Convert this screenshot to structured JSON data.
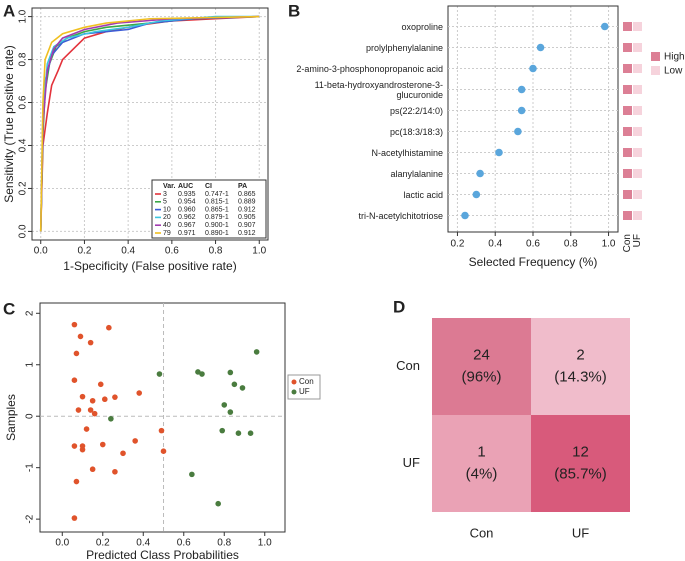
{
  "chart_data": [
    {
      "type": "line",
      "panel": "A",
      "x_label": "1-Specificity (False positive rate)",
      "y_label": "Sensitivity (True positive rate)",
      "xlim": [
        -0.04,
        1.04
      ],
      "ylim": [
        -0.04,
        1.04
      ],
      "xticks": [
        {
          "value": 0,
          "label": "0.0"
        },
        0.2,
        0.4,
        0.6,
        0.8,
        {
          "value": 1,
          "label": "1.0"
        }
      ],
      "yticks": [
        {
          "value": 0,
          "label": "0.0"
        },
        0.2,
        0.4,
        0.6,
        0.8,
        {
          "value": 1,
          "label": "1.0"
        }
      ],
      "grid": true,
      "legend_position": "lower right",
      "legend_columns": [
        "Var.",
        "AUC",
        "CI",
        "PA"
      ],
      "series": [
        {
          "name": "3",
          "color": "#e3323b",
          "auc": "0.935",
          "ci": "0.747-1",
          "pa": "0.865",
          "x": [
            0,
            0.01,
            0.03,
            0.05,
            0.08,
            0.1,
            0.15,
            0.2,
            0.3,
            0.45,
            0.6,
            0.8,
            1
          ],
          "values": [
            0,
            0.4,
            0.55,
            0.68,
            0.75,
            0.8,
            0.85,
            0.9,
            0.93,
            0.96,
            0.98,
            0.99,
            1
          ]
        },
        {
          "name": "5",
          "color": "#3aa845",
          "auc": "0.954",
          "ci": "0.815-1",
          "pa": "0.889",
          "x": [
            0,
            0.01,
            0.02,
            0.04,
            0.07,
            0.12,
            0.2,
            0.3,
            0.5,
            0.7,
            1
          ],
          "values": [
            0,
            0.45,
            0.65,
            0.78,
            0.86,
            0.9,
            0.93,
            0.95,
            0.97,
            0.99,
            1
          ]
        },
        {
          "name": "10",
          "color": "#3b5bd6",
          "auc": "0.960",
          "ci": "0.865-1",
          "pa": "0.912",
          "x": [
            0,
            0.01,
            0.02,
            0.05,
            0.1,
            0.2,
            0.4,
            0.5,
            0.7,
            1
          ],
          "values": [
            0,
            0.5,
            0.7,
            0.82,
            0.88,
            0.92,
            0.94,
            0.97,
            0.99,
            1
          ]
        },
        {
          "name": "20",
          "color": "#3cc6e0",
          "auc": "0.962",
          "ci": "0.879-1",
          "pa": "0.905",
          "x": [
            0,
            0.01,
            0.03,
            0.06,
            0.12,
            0.25,
            0.4,
            0.55,
            0.8,
            1
          ],
          "values": [
            0,
            0.55,
            0.78,
            0.86,
            0.9,
            0.93,
            0.95,
            0.98,
            1,
            1
          ]
        },
        {
          "name": "40",
          "color": "#a23bb0",
          "auc": "0.967",
          "ci": "0.900-1",
          "pa": "0.907",
          "x": [
            0,
            0.01,
            0.03,
            0.06,
            0.1,
            0.2,
            0.35,
            0.6,
            1
          ],
          "values": [
            0,
            0.5,
            0.75,
            0.85,
            0.9,
            0.94,
            0.97,
            0.99,
            1
          ]
        },
        {
          "name": "79",
          "color": "#f0c020",
          "auc": "0.971",
          "ci": "0.890-1",
          "pa": "0.912",
          "x": [
            0,
            0.01,
            0.02,
            0.05,
            0.1,
            0.2,
            0.3,
            0.5,
            1
          ],
          "values": [
            0,
            0.6,
            0.8,
            0.88,
            0.92,
            0.95,
            0.97,
            0.99,
            1
          ]
        }
      ]
    },
    {
      "type": "dot",
      "panel": "B",
      "x_label": "Selected Frequency (%)",
      "categories": [
        "oxoproline",
        "prolylphenylalanine",
        "2-amino-3-phosphonopropanoic acid",
        "11-beta-hydroxyandrosterone-3-\nglucuronide",
        "ps(22:2/14:0)",
        "pc(18:3/18:3)",
        "N-acetylhistamine",
        "alanylalanine",
        "lactic acid",
        "tri-N-acetylchitotriose"
      ],
      "values": [
        0.98,
        0.64,
        0.6,
        0.54,
        0.54,
        0.52,
        0.42,
        0.32,
        0.3,
        0.24
      ],
      "color": "#5aa6dc",
      "xlim": [
        0.15,
        1.05
      ],
      "xticks": [
        0.2,
        0.4,
        0.6,
        0.8,
        {
          "value": 1,
          "label": "1.0"
        }
      ],
      "grid": true,
      "heatmap": {
        "columns": [
          "Con",
          "UF"
        ],
        "legend": [
          {
            "name": "High",
            "color": "#dc7f95"
          },
          {
            "name": "Low",
            "color": "#f6d3dc"
          }
        ],
        "cells": [
          [
            "High",
            "Low"
          ],
          [
            "High",
            "Low"
          ],
          [
            "High",
            "Low"
          ],
          [
            "High",
            "Low"
          ],
          [
            "High",
            "Low"
          ],
          [
            "High",
            "Low"
          ],
          [
            "High",
            "Low"
          ],
          [
            "High",
            "Low"
          ],
          [
            "High",
            "Low"
          ],
          [
            "High",
            "Low"
          ]
        ]
      }
    },
    {
      "type": "scatter",
      "panel": "C",
      "x_label": "Predicted Class Probabilities",
      "y_label": "Samples",
      "xlim": [
        -0.11,
        1.1
      ],
      "ylim": [
        -2.25,
        2.2
      ],
      "xticks": [
        {
          "value": 0,
          "label": "0.0"
        },
        0.2,
        0.4,
        0.6,
        0.8,
        {
          "value": 1,
          "label": "1.0"
        }
      ],
      "yticks": [
        -2,
        -1,
        0,
        1,
        2
      ],
      "reference_lines": {
        "x": 0.5,
        "y": 0
      },
      "legend_position": "right",
      "series": [
        {
          "name": "Con",
          "color": "#e0532b",
          "x": [
            0.06,
            0.07,
            0.09,
            0.23,
            0.14,
            0.06,
            0.19,
            0.1,
            0.15,
            0.21,
            0.08,
            0.14,
            0.16,
            0.12,
            0.06,
            0.1,
            0.1,
            0.2,
            0.3,
            0.36,
            0.49,
            0.5,
            0.26,
            0.15,
            0.07,
            0.06,
            0.38,
            0.26
          ],
          "values": [
            1.78,
            1.22,
            1.55,
            1.72,
            1.43,
            0.7,
            0.62,
            0.38,
            0.3,
            0.33,
            0.12,
            0.12,
            0.05,
            -0.25,
            -0.58,
            -0.58,
            -0.65,
            -0.55,
            -0.72,
            -0.48,
            -0.28,
            -0.68,
            -1.08,
            -1.03,
            -1.27,
            -1.98,
            0.45,
            0.37
          ]
        },
        {
          "name": "UF",
          "color": "#4a7c3f",
          "x": [
            0.48,
            0.67,
            0.69,
            0.83,
            0.85,
            0.96,
            0.89,
            0.24,
            0.8,
            0.83,
            0.79,
            0.87,
            0.93,
            0.64,
            0.77
          ],
          "values": [
            0.82,
            0.86,
            0.82,
            0.85,
            0.62,
            1.25,
            0.55,
            -0.05,
            0.22,
            0.08,
            -0.28,
            -0.33,
            -0.33,
            -1.13,
            -1.7
          ]
        }
      ]
    },
    {
      "type": "heatmap",
      "panel": "D",
      "rows": [
        "Con",
        "UF"
      ],
      "columns": [
        "Con",
        "UF"
      ],
      "values": [
        [
          24,
          2
        ],
        [
          1,
          12
        ]
      ],
      "percent_labels": [
        [
          "(96%)",
          "(14.3%)"
        ],
        [
          "(4%)",
          "(85.7%)"
        ]
      ],
      "colors": [
        [
          "#dc7a93",
          "#f0bccb"
        ],
        [
          "#eaa2b5",
          "#d85a7b"
        ]
      ]
    }
  ]
}
